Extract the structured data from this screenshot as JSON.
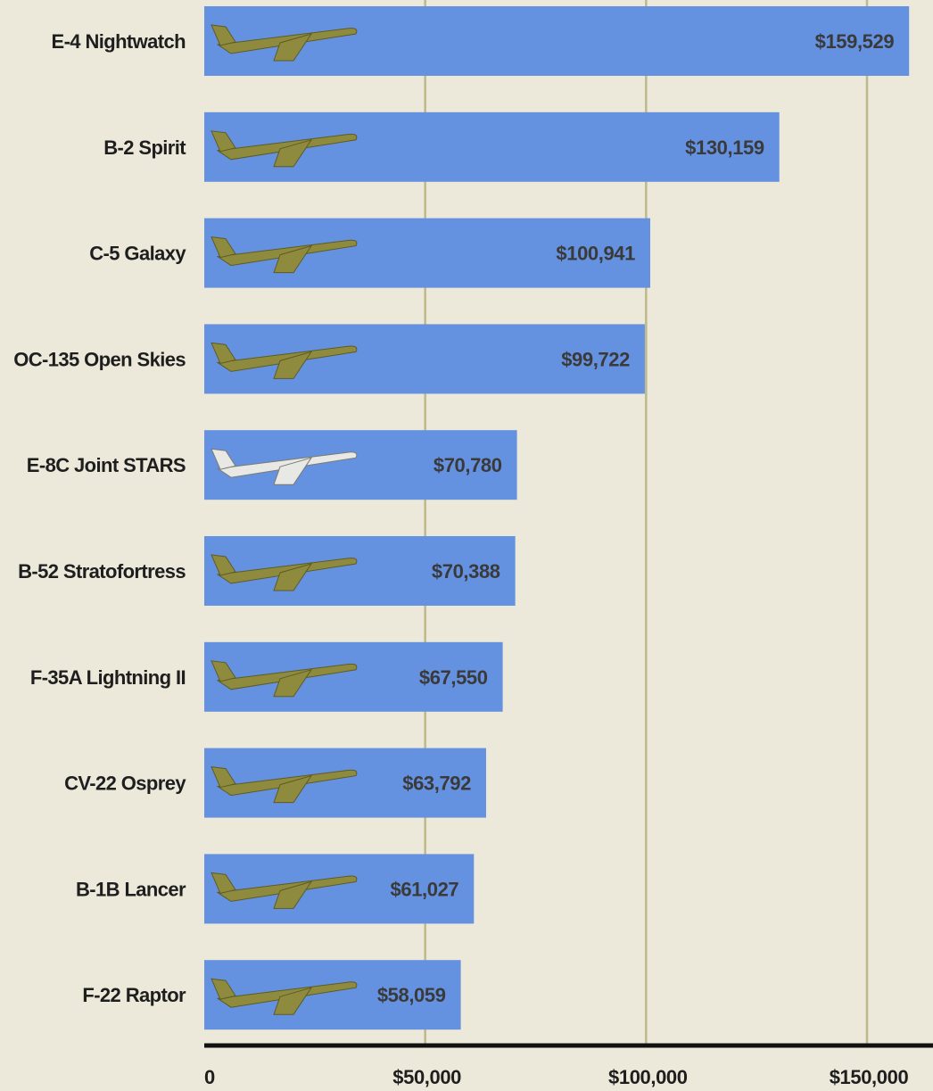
{
  "chart_data": {
    "type": "bar",
    "orientation": "horizontal",
    "categories": [
      "E-4 Nightwatch",
      "B-2 Spirit",
      "C-5 Galaxy",
      "OC-135 Open Skies",
      "E-8C Joint STARS",
      "B-52 Stratofortress",
      "F-35A Lightning II",
      "CV-22 Osprey",
      "B-1B Lancer",
      "F-22 Raptor"
    ],
    "values": [
      159529,
      130159,
      100941,
      99722,
      70780,
      70388,
      67550,
      63792,
      61027,
      58059
    ],
    "value_labels": [
      "$159,529",
      "$130,159",
      "$100,941",
      "$99,722",
      "$70,780",
      "$70,388",
      "$67,550",
      "$63,792",
      "$61,027",
      "$58,059"
    ],
    "icons": [
      "e-4-nightwatch-aircraft-icon",
      "b-2-spirit-aircraft-icon",
      "c-5-galaxy-aircraft-icon",
      "oc-135-open-skies-aircraft-icon",
      "e-8c-joint-stars-aircraft-icon",
      "b-52-stratofortress-aircraft-icon",
      "f-35a-lightning-ii-aircraft-icon",
      "cv-22-osprey-aircraft-icon",
      "b-1b-lancer-aircraft-icon",
      "f-22-raptor-aircraft-icon"
    ],
    "x_ticks": [
      0,
      50000,
      100000,
      150000
    ],
    "x_tick_labels": [
      "0",
      "$50,000",
      "$100,000",
      "$150,000"
    ],
    "xlim": [
      0,
      165000
    ],
    "title": "",
    "xlabel": "",
    "ylabel": "",
    "grid": true,
    "legend": "none",
    "colors": {
      "background": "#ece9da",
      "bar": "#6592e0",
      "gridline": "#bdb98a",
      "axis": "#111111",
      "aircraft": "#8f8b3e"
    }
  }
}
